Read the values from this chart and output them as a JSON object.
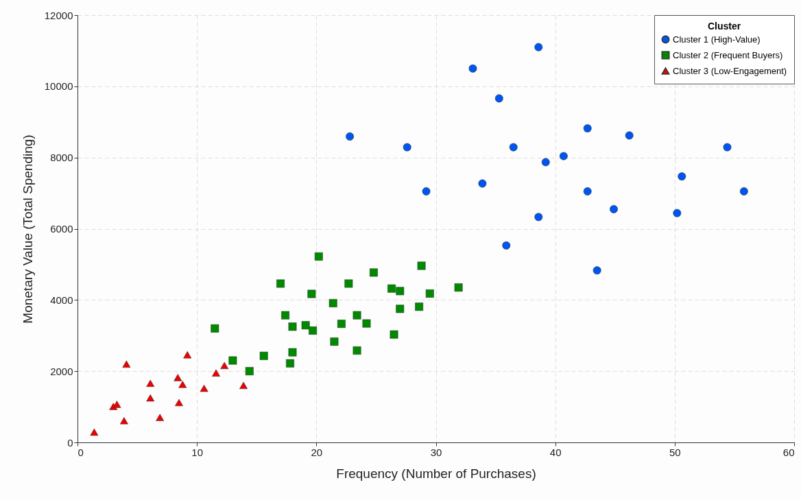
{
  "chart_data": {
    "type": "scatter",
    "xlabel": "Frequency (Number of Purchases)",
    "ylabel": "Monetary Value (Total Spending)",
    "legend_title": "Cluster",
    "legend": "top right",
    "grid": true,
    "xlim": [
      0,
      60
    ],
    "xticks": [
      0,
      10,
      20,
      30,
      40,
      50,
      60
    ],
    "ylim": [
      0,
      12000
    ],
    "yticks": [
      0,
      2000,
      4000,
      6000,
      8000,
      10000,
      12000
    ],
    "series": [
      {
        "name": "Cluster 1 (High-Value)",
        "color": "#0055ee",
        "marker": "circle",
        "x": [
          38.6,
          33.1,
          35.3,
          22.8,
          27.6,
          36.5,
          40.7,
          39.2,
          29.2,
          33.9,
          38.6,
          35.9,
          42.7,
          46.2,
          54.4,
          50.6,
          42.7,
          55.8,
          44.9,
          50.2,
          43.5
        ],
        "values": [
          11100,
          10500,
          9660,
          8590,
          8290,
          8290,
          8040,
          7870,
          7050,
          7270,
          6330,
          5530,
          8820,
          8620,
          8290,
          7470,
          7050,
          7050,
          6550,
          6440,
          4830
        ]
      },
      {
        "name": "Cluster 2 (Frequent Buyers)",
        "color": "#008a00",
        "marker": "square",
        "x": [
          20.2,
          28.8,
          24.8,
          17.0,
          22.7,
          26.3,
          27.0,
          31.9,
          19.6,
          29.5,
          21.4,
          27.0,
          28.6,
          17.4,
          23.4,
          22.1,
          24.2,
          18.0,
          19.1,
          19.7,
          11.5,
          26.5,
          21.5,
          23.4,
          18.0,
          15.6,
          17.8,
          13.0,
          14.4
        ],
        "values": [
          5220,
          4960,
          4770,
          4460,
          4460,
          4320,
          4250,
          4350,
          4170,
          4180,
          3910,
          3750,
          3810,
          3570,
          3570,
          3330,
          3340,
          3250,
          3290,
          3140,
          3200,
          3030,
          2830,
          2580,
          2530,
          2430,
          2220,
          2300,
          2000
        ]
      },
      {
        "name": "Cluster 3 (Low-Engagement)",
        "color": "#ee0000",
        "marker": "triangle",
        "x": [
          1.4,
          3.0,
          3.3,
          3.9,
          4.1,
          6.1,
          6.1,
          6.9,
          8.4,
          8.8,
          8.5,
          9.2,
          10.6,
          11.6,
          12.3,
          13.9
        ],
        "values": [
          290,
          1010,
          1070,
          610,
          2200,
          1660,
          1250,
          700,
          1820,
          1630,
          1120,
          2460,
          1520,
          1950,
          2160,
          1600
        ]
      }
    ]
  }
}
